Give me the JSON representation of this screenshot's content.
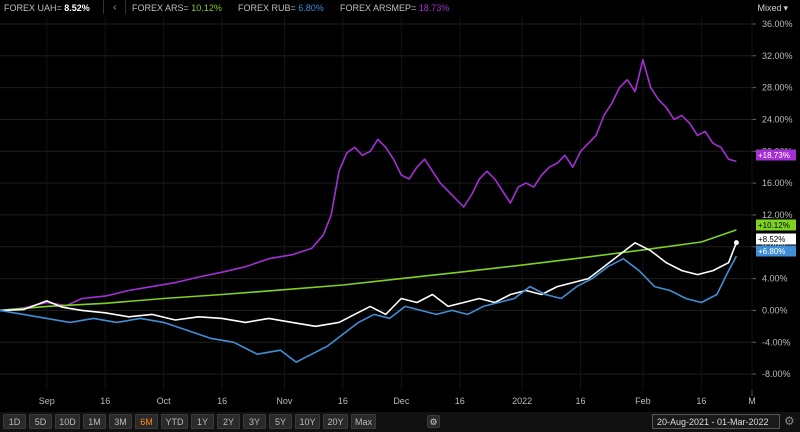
{
  "legend": {
    "items": [
      {
        "name": "FOREX UAH=",
        "value": "8.52%",
        "color": "#ffffff"
      },
      {
        "name": "FOREX ARS=",
        "value": "10.12%",
        "color": "#7ed321"
      },
      {
        "name": "FOREX RUB=",
        "value": "6.80%",
        "color": "#3f8fd6"
      },
      {
        "name": "FOREX ARSMEP=",
        "value": "18.73%",
        "color": "#a52fd6"
      }
    ],
    "chevron": "‹"
  },
  "scale_mode": {
    "label": "Mixed",
    "caret": "▾"
  },
  "range_buttons": [
    "1D",
    "5D",
    "10D",
    "1M",
    "3M",
    "6M",
    "YTD",
    "1Y",
    "2Y",
    "3Y",
    "5Y",
    "10Y",
    "20Y",
    "Max"
  ],
  "active_range": "6M",
  "gear_icon_label": "⚙",
  "date_range": "20-Aug-2021 - 01-Mar-2022",
  "chart_data": {
    "type": "line",
    "x_ticks": [
      {
        "label": "Sep",
        "date": "2021-09-01"
      },
      {
        "label": "16",
        "date": "2021-09-16"
      },
      {
        "label": "Oct",
        "date": "2021-10-01"
      },
      {
        "label": "16",
        "date": "2021-10-16"
      },
      {
        "label": "Nov",
        "date": "2021-11-01"
      },
      {
        "label": "16",
        "date": "2021-11-16"
      },
      {
        "label": "Dec",
        "date": "2021-12-01"
      },
      {
        "label": "16",
        "date": "2021-12-16"
      },
      {
        "label": "2022",
        "date": "2022-01-01"
      },
      {
        "label": "16",
        "date": "2022-01-16"
      },
      {
        "label": "Feb",
        "date": "2022-02-01"
      },
      {
        "label": "16",
        "date": "2022-02-16"
      },
      {
        "label": "M",
        "date": "2022-03-01"
      }
    ],
    "x_range": [
      "2021-08-20",
      "2022-03-01"
    ],
    "y_ticks": [
      "36.00%",
      "32.00%",
      "28.00%",
      "24.00%",
      "20.00%",
      "16.00%",
      "12.00%",
      "8.00%",
      "4.00%",
      "0.00%",
      "-4.00%",
      "-8.00%"
    ],
    "y_tick_values": [
      36,
      32,
      28,
      24,
      20,
      16,
      12,
      8,
      4,
      0,
      -4,
      -8
    ],
    "ylim": [
      -10,
      37
    ],
    "grid": true,
    "series": [
      {
        "name": "FOREX ARSMEP=",
        "color": "#a52fd6",
        "end_label": "+18.73%",
        "points": [
          [
            "2021-08-20",
            0
          ],
          [
            "2021-08-26",
            0.3
          ],
          [
            "2021-09-01",
            1.0
          ],
          [
            "2021-09-06",
            0.6
          ],
          [
            "2021-09-10",
            1.5
          ],
          [
            "2021-09-16",
            1.8
          ],
          [
            "2021-09-22",
            2.5
          ],
          [
            "2021-09-28",
            3.0
          ],
          [
            "2021-10-04",
            3.5
          ],
          [
            "2021-10-10",
            4.2
          ],
          [
            "2021-10-16",
            4.8
          ],
          [
            "2021-10-22",
            5.5
          ],
          [
            "2021-10-28",
            6.5
          ],
          [
            "2021-11-03",
            7.0
          ],
          [
            "2021-11-08",
            7.8
          ],
          [
            "2021-11-11",
            9.5
          ],
          [
            "2021-11-13",
            12.0
          ],
          [
            "2021-11-15",
            17.5
          ],
          [
            "2021-11-17",
            19.8
          ],
          [
            "2021-11-19",
            20.5
          ],
          [
            "2021-11-21",
            19.5
          ],
          [
            "2021-11-23",
            20.0
          ],
          [
            "2021-11-25",
            21.5
          ],
          [
            "2021-11-27",
            20.5
          ],
          [
            "2021-11-29",
            19.0
          ],
          [
            "2021-12-01",
            17.0
          ],
          [
            "2021-12-03",
            16.5
          ],
          [
            "2021-12-05",
            18.0
          ],
          [
            "2021-12-07",
            19.0
          ],
          [
            "2021-12-09",
            17.5
          ],
          [
            "2021-12-11",
            16.0
          ],
          [
            "2021-12-13",
            15.0
          ],
          [
            "2021-12-15",
            14.0
          ],
          [
            "2021-12-17",
            13.0
          ],
          [
            "2021-12-19",
            14.5
          ],
          [
            "2021-12-21",
            16.5
          ],
          [
            "2021-12-23",
            17.5
          ],
          [
            "2021-12-25",
            16.5
          ],
          [
            "2021-12-27",
            15.0
          ],
          [
            "2021-12-29",
            13.5
          ],
          [
            "2021-12-31",
            15.5
          ],
          [
            "2022-01-02",
            16.0
          ],
          [
            "2022-01-04",
            15.5
          ],
          [
            "2022-01-06",
            17.0
          ],
          [
            "2022-01-08",
            18.0
          ],
          [
            "2022-01-10",
            18.5
          ],
          [
            "2022-01-12",
            19.5
          ],
          [
            "2022-01-14",
            18.0
          ],
          [
            "2022-01-16",
            20.0
          ],
          [
            "2022-01-18",
            21.0
          ],
          [
            "2022-01-20",
            22.0
          ],
          [
            "2022-01-22",
            24.5
          ],
          [
            "2022-01-24",
            26.0
          ],
          [
            "2022-01-26",
            28.0
          ],
          [
            "2022-01-28",
            29.0
          ],
          [
            "2022-01-30",
            27.5
          ],
          [
            "2022-02-01",
            31.5
          ],
          [
            "2022-02-03",
            28.0
          ],
          [
            "2022-02-05",
            26.5
          ],
          [
            "2022-02-07",
            25.5
          ],
          [
            "2022-02-09",
            24.0
          ],
          [
            "2022-02-11",
            24.5
          ],
          [
            "2022-02-13",
            23.5
          ],
          [
            "2022-02-15",
            22.0
          ],
          [
            "2022-02-17",
            22.5
          ],
          [
            "2022-02-19",
            21.0
          ],
          [
            "2022-02-21",
            20.5
          ],
          [
            "2022-02-23",
            19.0
          ],
          [
            "2022-02-25",
            18.73
          ]
        ]
      },
      {
        "name": "FOREX ARS=",
        "color": "#7ed321",
        "end_label": "+10.12%",
        "points": [
          [
            "2021-08-20",
            0
          ],
          [
            "2021-09-01",
            0.5
          ],
          [
            "2021-09-16",
            0.9
          ],
          [
            "2021-10-01",
            1.5
          ],
          [
            "2021-10-16",
            2.0
          ],
          [
            "2021-11-01",
            2.6
          ],
          [
            "2021-11-16",
            3.2
          ],
          [
            "2021-12-01",
            4.0
          ],
          [
            "2021-12-16",
            4.8
          ],
          [
            "2022-01-01",
            5.7
          ],
          [
            "2022-01-16",
            6.6
          ],
          [
            "2022-02-01",
            7.6
          ],
          [
            "2022-02-16",
            8.6
          ],
          [
            "2022-02-25",
            10.12
          ]
        ]
      },
      {
        "name": "FOREX UAH=",
        "color": "#ffffff",
        "end_label": "+8.52%",
        "points": [
          [
            "2021-08-20",
            0
          ],
          [
            "2021-08-26",
            0.1
          ],
          [
            "2021-09-01",
            1.2
          ],
          [
            "2021-09-05",
            0.4
          ],
          [
            "2021-09-10",
            0.0
          ],
          [
            "2021-09-16",
            -0.3
          ],
          [
            "2021-09-22",
            -0.8
          ],
          [
            "2021-09-28",
            -0.5
          ],
          [
            "2021-10-04",
            -1.2
          ],
          [
            "2021-10-10",
            -0.8
          ],
          [
            "2021-10-16",
            -1.0
          ],
          [
            "2021-10-22",
            -1.5
          ],
          [
            "2021-10-28",
            -1.0
          ],
          [
            "2021-11-03",
            -1.5
          ],
          [
            "2021-11-09",
            -2.0
          ],
          [
            "2021-11-15",
            -1.5
          ],
          [
            "2021-11-19",
            -0.5
          ],
          [
            "2021-11-23",
            0.5
          ],
          [
            "2021-11-27",
            -0.5
          ],
          [
            "2021-12-01",
            1.5
          ],
          [
            "2021-12-05",
            1.0
          ],
          [
            "2021-12-09",
            2.0
          ],
          [
            "2021-12-13",
            0.5
          ],
          [
            "2021-12-17",
            1.0
          ],
          [
            "2021-12-21",
            1.5
          ],
          [
            "2021-12-25",
            1.0
          ],
          [
            "2021-12-29",
            2.0
          ],
          [
            "2022-01-02",
            2.5
          ],
          [
            "2022-01-06",
            2.0
          ],
          [
            "2022-01-10",
            3.0
          ],
          [
            "2022-01-14",
            3.5
          ],
          [
            "2022-01-18",
            4.0
          ],
          [
            "2022-01-22",
            5.5
          ],
          [
            "2022-01-26",
            7.0
          ],
          [
            "2022-01-30",
            8.5
          ],
          [
            "2022-02-03",
            7.5
          ],
          [
            "2022-02-07",
            6.0
          ],
          [
            "2022-02-11",
            5.0
          ],
          [
            "2022-02-15",
            4.5
          ],
          [
            "2022-02-19",
            5.0
          ],
          [
            "2022-02-23",
            6.0
          ],
          [
            "2022-02-25",
            8.52
          ]
        ]
      },
      {
        "name": "FOREX RUB=",
        "color": "#3f8fd6",
        "end_label": "+6.80%",
        "points": [
          [
            "2021-08-20",
            0
          ],
          [
            "2021-08-26",
            -0.5
          ],
          [
            "2021-09-01",
            -1.0
          ],
          [
            "2021-09-07",
            -1.5
          ],
          [
            "2021-09-13",
            -1.0
          ],
          [
            "2021-09-19",
            -1.5
          ],
          [
            "2021-09-25",
            -1.0
          ],
          [
            "2021-10-01",
            -1.5
          ],
          [
            "2021-10-07",
            -2.5
          ],
          [
            "2021-10-13",
            -3.5
          ],
          [
            "2021-10-19",
            -4.0
          ],
          [
            "2021-10-25",
            -5.5
          ],
          [
            "2021-10-31",
            -5.0
          ],
          [
            "2021-11-04",
            -6.5
          ],
          [
            "2021-11-08",
            -5.5
          ],
          [
            "2021-11-12",
            -4.5
          ],
          [
            "2021-11-16",
            -3.0
          ],
          [
            "2021-11-20",
            -1.5
          ],
          [
            "2021-11-24",
            -0.5
          ],
          [
            "2021-11-28",
            -1.0
          ],
          [
            "2021-12-02",
            0.5
          ],
          [
            "2021-12-06",
            0.0
          ],
          [
            "2021-12-10",
            -0.5
          ],
          [
            "2021-12-14",
            0.0
          ],
          [
            "2021-12-18",
            -0.5
          ],
          [
            "2021-12-22",
            0.5
          ],
          [
            "2021-12-26",
            1.0
          ],
          [
            "2021-12-30",
            1.5
          ],
          [
            "2022-01-03",
            3.0
          ],
          [
            "2022-01-07",
            2.0
          ],
          [
            "2022-01-11",
            1.5
          ],
          [
            "2022-01-15",
            3.0
          ],
          [
            "2022-01-19",
            4.0
          ],
          [
            "2022-01-23",
            5.5
          ],
          [
            "2022-01-27",
            6.5
          ],
          [
            "2022-01-31",
            5.0
          ],
          [
            "2022-02-04",
            3.0
          ],
          [
            "2022-02-08",
            2.5
          ],
          [
            "2022-02-12",
            1.5
          ],
          [
            "2022-02-16",
            1.0
          ],
          [
            "2022-02-20",
            2.0
          ],
          [
            "2022-02-23",
            5.0
          ],
          [
            "2022-02-25",
            6.8
          ]
        ]
      }
    ]
  }
}
